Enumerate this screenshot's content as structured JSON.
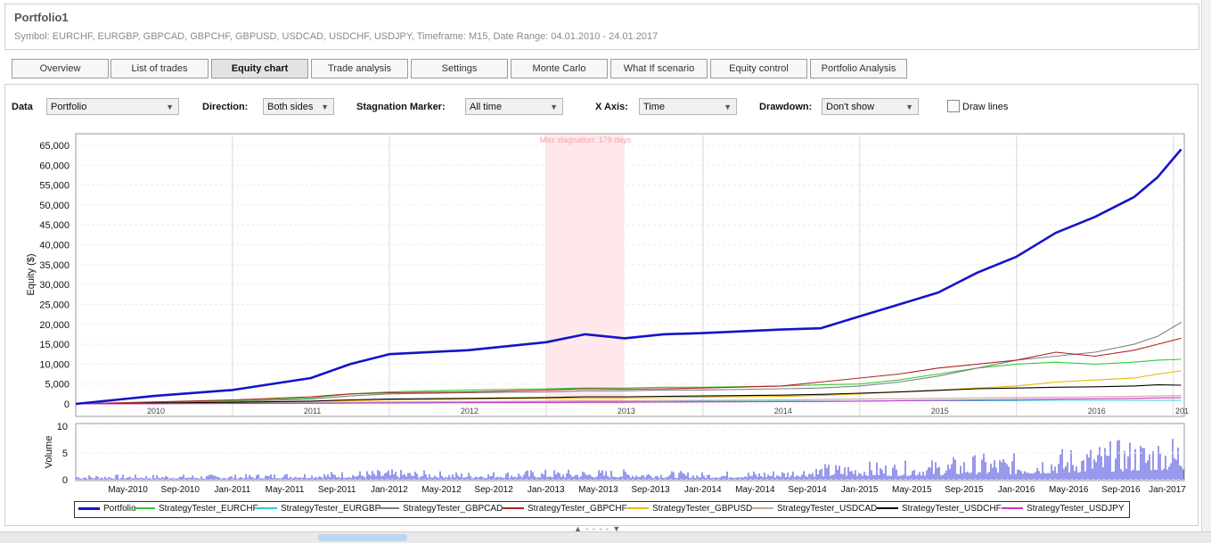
{
  "header": {
    "title": "Portfolio1",
    "subtitle": "Symbol: EURCHF, EURGBP, GBPCAD, GBPCHF, GBPUSD, USDCAD, USDCHF, USDJPY, Timeframe: M15, Date Range: 04.01.2010 - 24.01.2017"
  },
  "tabs": [
    "Overview",
    "List of trades",
    "Equity chart",
    "Trade analysis",
    "Settings",
    "Monte Carlo",
    "What If scenario",
    "Equity control",
    "Portfolio Analysis"
  ],
  "active_tab": "Equity chart",
  "controls": {
    "data_label": "Data",
    "data_value": "Portfolio",
    "direction_label": "Direction:",
    "direction_value": "Both sides",
    "stagnation_label": "Stagnation Marker:",
    "stagnation_value": "All time",
    "xaxis_label": "X Axis:",
    "xaxis_value": "Time",
    "drawdown_label": "Drawdown:",
    "drawdown_value": "Don't show",
    "drawlines_label": "Draw lines",
    "drawlines_checked": false
  },
  "colors": {
    "portfolio": "#1414c8",
    "eurchf": "#33cc33",
    "eurgbp": "#33cccc",
    "gbpcad": "#808080",
    "gbpchf": "#b22222",
    "gbpusd": "#e6b800",
    "usdcad": "#c8a8a0",
    "usdchf": "#000000",
    "usdjpy": "#cc33cc",
    "stagnation": "#ffe6ea",
    "volume": "#3030d8"
  },
  "chart_data": [
    {
      "type": "line",
      "ylabel": "Equity ($)",
      "ylim": [
        0,
        65000
      ],
      "yticks": [
        "0",
        "5,000",
        "10,000",
        "15,000",
        "20,000",
        "25,000",
        "30,000",
        "35,000",
        "40,000",
        "45,000",
        "50,000",
        "55,000",
        "60,000",
        "65,000"
      ],
      "year_labels": [
        "2010",
        "2011",
        "2012",
        "2013",
        "2014",
        "2015",
        "2016",
        "201"
      ],
      "stagnation_text": "Max stagnation: 179 days",
      "stagnation_range": [
        "2013-04",
        "2013-10"
      ],
      "x": [
        2010.0,
        2010.5,
        2011.0,
        2011.5,
        2011.75,
        2012.0,
        2012.5,
        2013.0,
        2013.25,
        2013.5,
        2013.75,
        2014.0,
        2014.5,
        2014.75,
        2015.0,
        2015.25,
        2015.5,
        2015.75,
        2016.0,
        2016.25,
        2016.5,
        2016.75,
        2016.9,
        2017.05
      ],
      "series": [
        {
          "name": "Portfolio",
          "values": [
            0,
            2000,
            3500,
            6500,
            10000,
            12500,
            13500,
            15500,
            17500,
            16500,
            17500,
            17800,
            18700,
            19000,
            22000,
            25000,
            28000,
            33000,
            37000,
            43000,
            47000,
            52000,
            57000,
            64000
          ]
        },
        {
          "name": "StrategyTester_EURCHF",
          "values": [
            0,
            400,
            800,
            1500,
            2500,
            3000,
            3500,
            3800,
            4000,
            4000,
            4200,
            4200,
            4500,
            4800,
            5000,
            6000,
            7500,
            9000,
            10000,
            10500,
            10000,
            10500,
            11000,
            11200
          ]
        },
        {
          "name": "StrategyTester_EURGBP",
          "values": [
            0,
            100,
            200,
            300,
            400,
            500,
            500,
            600,
            600,
            600,
            600,
            700,
            700,
            700,
            700,
            800,
            800,
            800,
            800,
            900,
            900,
            900,
            900,
            900
          ]
        },
        {
          "name": "StrategyTester_GBPCAD",
          "values": [
            0,
            300,
            600,
            1200,
            2000,
            2500,
            2800,
            3000,
            3300,
            3300,
            3500,
            3500,
            3800,
            4000,
            4500,
            5500,
            7000,
            9000,
            11000,
            12000,
            13000,
            15000,
            17000,
            20500
          ]
        },
        {
          "name": "StrategyTester_GBPCHF",
          "values": [
            0,
            500,
            1000,
            1800,
            2500,
            2800,
            3000,
            3500,
            3800,
            3700,
            3800,
            4000,
            4500,
            5500,
            6500,
            7500,
            9000,
            10000,
            11000,
            13000,
            12000,
            13500,
            15000,
            16500
          ]
        },
        {
          "name": "StrategyTester_GBPUSD",
          "values": [
            0,
            200,
            400,
            600,
            800,
            1000,
            1200,
            1400,
            1500,
            1500,
            1600,
            1700,
            1900,
            2100,
            2500,
            3000,
            3500,
            4000,
            4500,
            5500,
            6000,
            6500,
            7500,
            8300
          ]
        },
        {
          "name": "StrategyTester_USDCAD",
          "values": [
            0,
            100,
            200,
            300,
            400,
            500,
            600,
            700,
            800,
            800,
            900,
            900,
            1000,
            1100,
            1200,
            1300,
            1400,
            1500,
            1600,
            1700,
            1800,
            1900,
            2000,
            2100
          ]
        },
        {
          "name": "StrategyTester_USDCHF",
          "values": [
            0,
            200,
            400,
            700,
            1000,
            1200,
            1400,
            1600,
            1800,
            1800,
            1900,
            2000,
            2200,
            2400,
            2700,
            3000,
            3400,
            3800,
            4000,
            4200,
            4300,
            4500,
            4800,
            4700
          ]
        },
        {
          "name": "StrategyTester_USDJPY",
          "values": [
            0,
            50,
            100,
            150,
            200,
            250,
            300,
            350,
            400,
            400,
            450,
            500,
            550,
            600,
            700,
            800,
            900,
            1000,
            1100,
            1200,
            1300,
            1400,
            1500,
            1600
          ]
        }
      ]
    },
    {
      "type": "bar",
      "ylabel": "Volume",
      "ylim": [
        0,
        10
      ],
      "yticks": [
        "0",
        "5",
        "10"
      ],
      "xticks": [
        "May-2010",
        "Sep-2010",
        "Jan-2011",
        "May-2011",
        "Sep-2011",
        "Jan-2012",
        "May-2012",
        "Sep-2012",
        "Jan-2013",
        "May-2013",
        "Sep-2013",
        "Jan-2014",
        "May-2014",
        "Sep-2014",
        "Jan-2015",
        "May-2015",
        "Sep-2015",
        "Jan-2016",
        "May-2016",
        "Sep-2016",
        "Jan-2017"
      ],
      "x": [
        2010.0,
        2010.5,
        2011.0,
        2011.5,
        2012.0,
        2012.5,
        2013.0,
        2013.5,
        2014.0,
        2014.5,
        2014.75,
        2015.0,
        2015.25,
        2015.5,
        2015.75,
        2016.0,
        2016.25,
        2016.5,
        2016.75,
        2017.0
      ],
      "values": [
        1,
        1,
        1,
        1.5,
        2,
        1.5,
        2,
        2,
        1.5,
        2,
        3,
        3.5,
        3.5,
        4,
        5,
        5,
        6,
        7,
        8,
        9
      ]
    }
  ]
}
